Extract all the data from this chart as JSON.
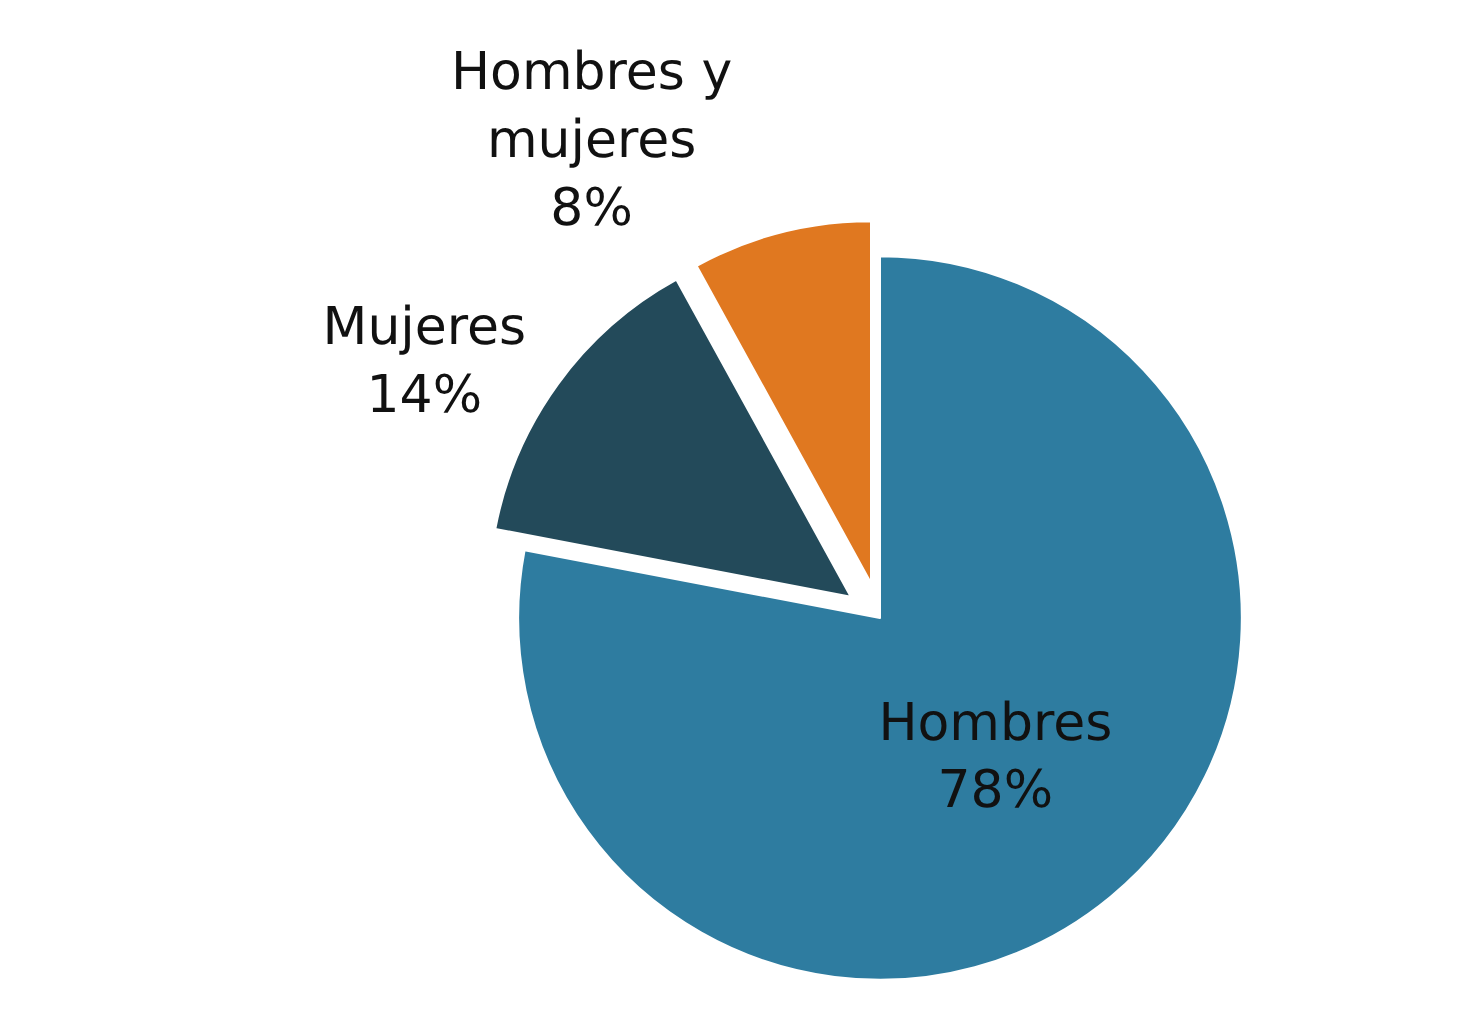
{
  "chart_data": {
    "type": "pie",
    "categories": [
      "Hombres",
      "Mujeres",
      "Hombres y mujeres"
    ],
    "values": [
      78,
      14,
      8
    ],
    "value_labels": [
      "78%",
      "14%",
      "8%"
    ],
    "colors": [
      "#2e7ca0",
      "#234a5a",
      "#e07820"
    ],
    "legend": false
  }
}
